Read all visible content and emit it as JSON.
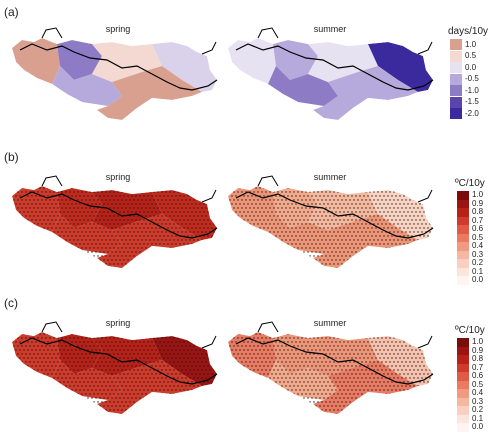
{
  "panels": [
    {
      "label": "(a)",
      "maps": [
        {
          "title": "spring",
          "zones": [
            {
              "color": "#d9a08f"
            },
            {
              "color": "#8d7bc6"
            },
            {
              "color": "#b6aadc"
            },
            {
              "color": "#f3d9d2"
            },
            {
              "color": "#d9d2ea"
            },
            {
              "color": "#d9a08f"
            }
          ]
        },
        {
          "title": "summer",
          "zones": [
            {
              "color": "#e7e2f2"
            },
            {
              "color": "#b6aadc"
            },
            {
              "color": "#8d7bc6"
            },
            {
              "color": "#e7e2f2"
            },
            {
              "color": "#3b2a9e"
            },
            {
              "color": "#b6aadc"
            }
          ]
        }
      ],
      "legend": {
        "title": "days/10y",
        "items": [
          {
            "label": "1.0",
            "color": "#d9a08f"
          },
          {
            "label": "0.5",
            "color": "#f3d9d2"
          },
          {
            "label": "0.0",
            "color": "#e7e2f2"
          },
          {
            "label": "-0.5",
            "color": "#b6aadc"
          },
          {
            "label": "-1.0",
            "color": "#8d7bc6"
          },
          {
            "label": "-1.5",
            "color": "#5a45ae"
          },
          {
            "label": "-2.0",
            "color": "#3b2a9e"
          }
        ]
      }
    },
    {
      "label": "(b)",
      "maps": [
        {
          "title": "spring",
          "zones": [
            {
              "color": "#cf3a2a"
            },
            {
              "color": "#c22a1e"
            },
            {
              "color": "#cf3a2a"
            },
            {
              "color": "#b82118"
            },
            {
              "color": "#c22a1e"
            },
            {
              "color": "#cf3a2a"
            }
          ]
        },
        {
          "title": "summer",
          "zones": [
            {
              "color": "#ee9577"
            },
            {
              "color": "#f2a98c"
            },
            {
              "color": "#ee9577"
            },
            {
              "color": "#f5b99f"
            },
            {
              "color": "#fad4c3"
            },
            {
              "color": "#ee9577"
            }
          ]
        }
      ],
      "legend": {
        "title": "ºC/10y",
        "items": [
          {
            "label": "1.0",
            "color": "#7a0c0c"
          },
          {
            "label": "0.9",
            "color": "#9c1412"
          },
          {
            "label": "0.8",
            "color": "#b82118"
          },
          {
            "label": "0.7",
            "color": "#cf3a2a"
          },
          {
            "label": "0.6",
            "color": "#e05a45"
          },
          {
            "label": "0.5",
            "color": "#ea7a62"
          },
          {
            "label": "0.4",
            "color": "#f29a80"
          },
          {
            "label": "0.3",
            "color": "#f6b7a2"
          },
          {
            "label": "0.2",
            "color": "#f9cfc1"
          },
          {
            "label": "0.1",
            "color": "#fce5dc"
          },
          {
            "label": "0.0",
            "color": "#fef5f1"
          }
        ]
      }
    },
    {
      "label": "(c)",
      "maps": [
        {
          "title": "spring",
          "zones": [
            {
              "color": "#cf3a2a"
            },
            {
              "color": "#b82118"
            },
            {
              "color": "#cf3a2a"
            },
            {
              "color": "#b82118"
            },
            {
              "color": "#9c1412"
            },
            {
              "color": "#cf3a2a"
            }
          ]
        },
        {
          "title": "summer",
          "zones": [
            {
              "color": "#ea7a62"
            },
            {
              "color": "#ee9577"
            },
            {
              "color": "#f2a98c"
            },
            {
              "color": "#ee9577"
            },
            {
              "color": "#f7c2ad"
            },
            {
              "color": "#ea7a62"
            }
          ]
        }
      ],
      "legend": {
        "title": "ºC/10y",
        "items": [
          {
            "label": "1.0",
            "color": "#7a0c0c"
          },
          {
            "label": "0.9",
            "color": "#9c1412"
          },
          {
            "label": "0.8",
            "color": "#b82118"
          },
          {
            "label": "0.7",
            "color": "#cf3a2a"
          },
          {
            "label": "0.6",
            "color": "#e05a45"
          },
          {
            "label": "0.5",
            "color": "#ea7a62"
          },
          {
            "label": "0.4",
            "color": "#f29a80"
          },
          {
            "label": "0.3",
            "color": "#f6b7a2"
          },
          {
            "label": "0.2",
            "color": "#f9cfc1"
          },
          {
            "label": "0.1",
            "color": "#fce5dc"
          },
          {
            "label": "0.0",
            "color": "#fef5f1"
          }
        ]
      }
    }
  ]
}
